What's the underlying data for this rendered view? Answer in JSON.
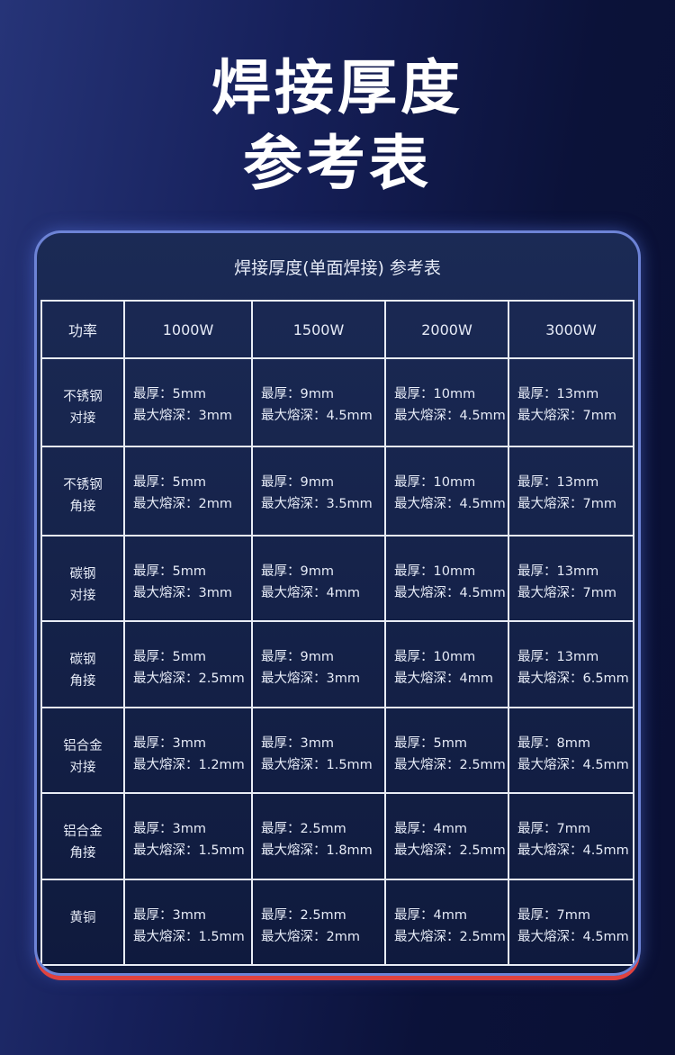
{
  "header": {
    "title_lines": [
      "焊接厚度",
      "参考表"
    ]
  },
  "table": {
    "caption": "焊接厚度(单面焊接) 参考表",
    "columns": [
      "功率",
      "1000W",
      "1500W",
      "2000W",
      "3000W"
    ],
    "rows": [
      {
        "label": [
          "不锈钢",
          "对接"
        ],
        "cells": [
          [
            "最厚：5mm",
            "最大熔深：3mm"
          ],
          [
            "最厚：9mm",
            "最大熔深：4.5mm"
          ],
          [
            "最厚：10mm",
            "最大熔深：4.5mm"
          ],
          [
            "最厚：13mm",
            "最大熔深：7mm"
          ]
        ]
      },
      {
        "label": [
          "不锈钢",
          "角接"
        ],
        "cells": [
          [
            "最厚：5mm",
            "最大熔深：2mm"
          ],
          [
            "最厚：9mm",
            "最大熔深：3.5mm"
          ],
          [
            "最厚：10mm",
            "最大熔深：4.5mm"
          ],
          [
            "最厚：13mm",
            "最大熔深：7mm"
          ]
        ]
      },
      {
        "label": [
          "碳钢",
          "对接"
        ],
        "cells": [
          [
            "最厚：5mm",
            "最大熔深：3mm"
          ],
          [
            "最厚：9mm",
            "最大熔深：4mm"
          ],
          [
            "最厚：10mm",
            "最大熔深：4.5mm"
          ],
          [
            "最厚：13mm",
            "最大熔深：7mm"
          ]
        ]
      },
      {
        "label": [
          "碳钢",
          "角接"
        ],
        "cells": [
          [
            "最厚：5mm",
            "最大熔深：2.5mm"
          ],
          [
            "最厚：9mm",
            "最大熔深：3mm"
          ],
          [
            "最厚：10mm",
            "最大熔深：4mm"
          ],
          [
            "最厚：13mm",
            "最大熔深：6.5mm"
          ]
        ]
      },
      {
        "label": [
          "铝合金",
          "对接"
        ],
        "cells": [
          [
            "最厚：3mm",
            "最大熔深：1.2mm"
          ],
          [
            "最厚：3mm",
            "最大熔深：1.5mm"
          ],
          [
            "最厚：5mm",
            "最大熔深：2.5mm"
          ],
          [
            "最厚：8mm",
            "最大熔深：4.5mm"
          ]
        ]
      },
      {
        "label": [
          "铝合金",
          "角接"
        ],
        "cells": [
          [
            "最厚：3mm",
            "最大熔深：1.5mm"
          ],
          [
            "最厚：2.5mm",
            "最大熔深：1.8mm"
          ],
          [
            "最厚：4mm",
            "最大熔深：2.5mm"
          ],
          [
            "最厚：7mm",
            "最大熔深：4.5mm"
          ]
        ]
      },
      {
        "label": [
          "黄铜"
        ],
        "cells": [
          [
            "最厚：3mm",
            "最大熔深：1.5mm"
          ],
          [
            "最厚：2.5mm",
            "最大熔深：2mm"
          ],
          [
            "最厚：4mm",
            "最大熔深：2.5mm"
          ],
          [
            "最厚：7mm",
            "最大熔深：4.5mm"
          ]
        ]
      }
    ]
  }
}
